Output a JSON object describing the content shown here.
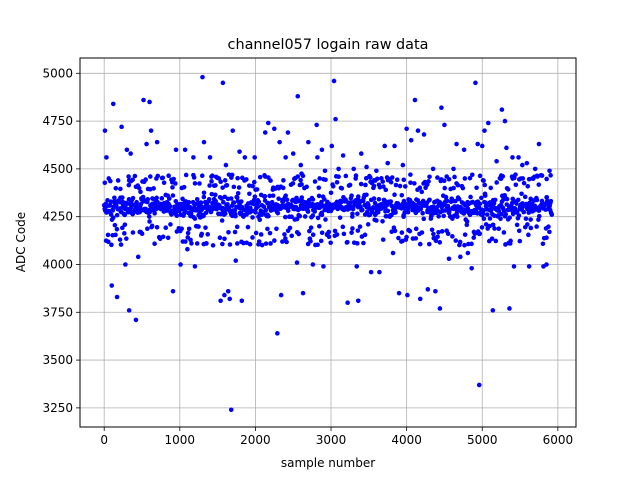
{
  "chart_data": {
    "type": "scatter",
    "title": "channel057 logain raw data",
    "xlabel": "sample number",
    "ylabel": "ADC Code",
    "xlim": [
      -320,
      6240
    ],
    "ylim": [
      3150,
      5080
    ],
    "xticks": [
      0,
      1000,
      2000,
      3000,
      4000,
      5000,
      6000
    ],
    "yticks": [
      3250,
      3500,
      3750,
      4000,
      4250,
      4500,
      4750,
      5000
    ],
    "xtick_labels": [
      "0",
      "1000",
      "2000",
      "3000",
      "4000",
      "5000",
      "6000"
    ],
    "ytick_labels": [
      "3250",
      "3500",
      "3750",
      "4000",
      "4250",
      "4500",
      "4750",
      "5000"
    ],
    "grid": true,
    "marker_color": "#0000ff",
    "n_samples": 5920,
    "core_band": {
      "range": [
        4220,
        4380
      ],
      "sampled_points": {
        "x": [
          0,
          120,
          240,
          360,
          480,
          600,
          720,
          840,
          960,
          1080,
          1200,
          1320,
          1440,
          1560,
          1680,
          1800,
          1920,
          2040,
          2160,
          2280,
          2400,
          2520,
          2640,
          2760,
          2880,
          3000,
          3120,
          3240,
          3360,
          3480,
          3600,
          3720,
          3840,
          3960,
          4080,
          4200,
          4320,
          4440,
          4560,
          4680,
          4800,
          4920,
          5040,
          5160,
          5280,
          5400,
          5520,
          5640,
          5760,
          5900
        ],
        "y": [
          4310,
          4245,
          4350,
          4270,
          4380,
          4225,
          4300,
          4360,
          4255,
          4330,
          4240,
          4375,
          4290,
          4230,
          4345,
          4265,
          4370,
          4250,
          4320,
          4285,
          4360,
          4235,
          4305,
          4340,
          4260,
          4375,
          4245,
          4315,
          4355,
          4275,
          4230,
          4330,
          4365,
          4250,
          4295,
          4380,
          4240,
          4325,
          4270,
          4350,
          4225,
          4310,
          4360,
          4255,
          4340,
          4280,
          4370,
          4235,
          4300,
          4320
        ]
      }
    },
    "mid_band_points": {
      "x": [
        60,
        210,
        330,
        470,
        610,
        780,
        900,
        1040,
        1190,
        1290,
        1420,
        1530,
        1650,
        1760,
        1880,
        2010,
        2130,
        2250,
        2370,
        2480,
        2610,
        2720,
        2850,
        2970,
        3080,
        3210,
        3330,
        3450,
        3570,
        3690,
        3810,
        3930,
        4050,
        4170,
        4290,
        4410,
        4530,
        4650,
        4770,
        4890,
        5010,
        5130,
        5250,
        5370,
        5490,
        5610,
        5730,
        5850,
        150,
        690,
        1110,
        1600,
        2050,
        2560,
        3050,
        3520,
        3990,
        4460,
        4960,
        5440
      ],
      "y": [
        4450,
        4130,
        4440,
        4170,
        4460,
        4145,
        4430,
        4120,
        4455,
        4160,
        4435,
        4140,
        4470,
        4110,
        4445,
        4165,
        4460,
        4125,
        4440,
        4150,
        4475,
        4135,
        4450,
        4170,
        4430,
        4115,
        4465,
        4155,
        4440,
        4130,
        4455,
        4120,
        4470,
        4160,
        4435,
        4145,
        4460,
        4125,
        4450,
        4170,
        4440,
        4135,
        4465,
        4110,
        4445,
        4155,
        4460,
        4140,
        4155,
        4450,
        4165,
        4440,
        4120,
        4460,
        4150,
        4455,
        4130,
        4445,
        4160,
        4470
      ]
    },
    "outlier_points": {
      "x": [
        10,
        30,
        100,
        120,
        170,
        230,
        280,
        300,
        330,
        350,
        420,
        450,
        520,
        560,
        600,
        620,
        700,
        910,
        950,
        1010,
        1070,
        1100,
        1180,
        1200,
        1230,
        1300,
        1320,
        1350,
        1400,
        1440,
        1540,
        1570,
        1590,
        1610,
        1640,
        1660,
        1680,
        1700,
        1740,
        1790,
        1820,
        1860,
        1990,
        2130,
        2170,
        2200,
        2250,
        2290,
        2320,
        2340,
        2400,
        2430,
        2500,
        2550,
        2560,
        2600,
        2630,
        2700,
        2760,
        2810,
        2820,
        2880,
        2900,
        2920,
        3010,
        3040,
        3060,
        3100,
        3160,
        3220,
        3300,
        3340,
        3360,
        3400,
        3470,
        3530,
        3600,
        3640,
        3710,
        3750,
        3820,
        3840,
        3900,
        3950,
        4000,
        4010,
        4060,
        4110,
        4150,
        4180,
        4230,
        4280,
        4350,
        4380,
        4440,
        4460,
        4500,
        4560,
        4620,
        4660,
        4710,
        4760,
        4810,
        4860,
        4910,
        4940,
        4960,
        5000,
        5030,
        5080,
        5140,
        5190,
        5260,
        5300,
        5320,
        5360,
        5400,
        5420,
        5480,
        5530,
        5590,
        5620,
        5700,
        5750,
        5810,
        5850,
        5890
      ],
      "y": [
        4700,
        4560,
        3890,
        4840,
        3830,
        4720,
        4000,
        4600,
        3760,
        4580,
        3710,
        4040,
        4860,
        4630,
        4850,
        4700,
        4640,
        3860,
        4600,
        4000,
        4600,
        4080,
        4560,
        3990,
        4110,
        4980,
        4640,
        4110,
        4560,
        4100,
        3810,
        4950,
        3840,
        4520,
        3860,
        3820,
        3240,
        4700,
        4020,
        4590,
        3810,
        4560,
        4560,
        4690,
        4740,
        4110,
        4710,
        3640,
        4640,
        3840,
        4560,
        4690,
        4580,
        4010,
        4880,
        4520,
        3850,
        4640,
        4000,
        4730,
        4560,
        4600,
        3990,
        4490,
        4620,
        4960,
        4760,
        4500,
        4570,
        3800,
        4500,
        3990,
        3810,
        4580,
        4510,
        3960,
        4490,
        3960,
        4620,
        4530,
        4060,
        4620,
        3850,
        4520,
        4710,
        3840,
        4650,
        4860,
        4700,
        3820,
        4680,
        3870,
        4500,
        3860,
        3770,
        4820,
        4730,
        4030,
        4500,
        4630,
        4040,
        4600,
        4060,
        3980,
        4950,
        4630,
        3370,
        4620,
        4700,
        4740,
        3760,
        4540,
        4810,
        4750,
        4610,
        3770,
        4560,
        3990,
        4560,
        4520,
        4530,
        3990,
        4500,
        4630,
        3990,
        4000,
        4490
      ]
    }
  }
}
